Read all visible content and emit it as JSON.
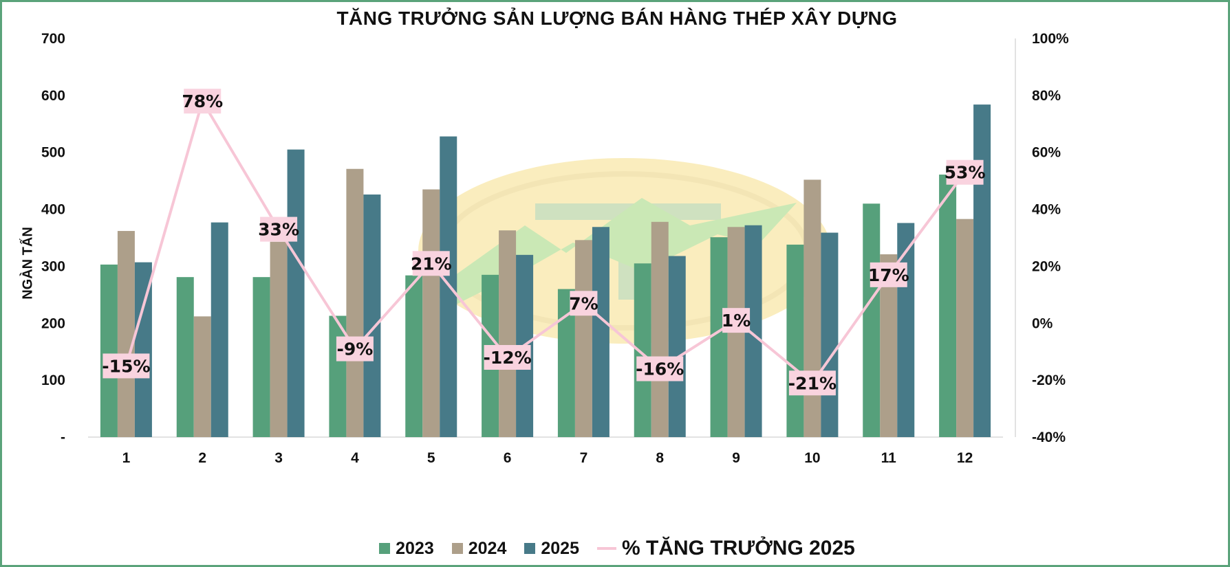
{
  "chart_data": {
    "type": "bar",
    "title": "TĂNG TRƯỞNG SẢN LƯỢNG BÁN HÀNG THÉP XÂY DỰNG",
    "ylabel": "NGÀN TẤN",
    "categories": [
      "1",
      "2",
      "3",
      "4",
      "5",
      "6",
      "7",
      "8",
      "9",
      "10",
      "11",
      "12"
    ],
    "ylim": [
      0,
      700
    ],
    "y_ticks": [
      "-",
      "100",
      "200",
      "300",
      "400",
      "500",
      "600",
      "700"
    ],
    "y2lim": [
      -40,
      100
    ],
    "y2_ticks": [
      "-40%",
      "-20%",
      "0%",
      "20%",
      "40%",
      "60%",
      "80%",
      "100%"
    ],
    "series": [
      {
        "name": "2023",
        "color": "#56a07b",
        "values": [
          303,
          281,
          281,
          213,
          284,
          285,
          260,
          305,
          351,
          338,
          410,
          461
        ]
      },
      {
        "name": "2024",
        "color": "#ad9f8a",
        "values": [
          362,
          212,
          343,
          471,
          435,
          363,
          346,
          378,
          369,
          452,
          321,
          383
        ]
      },
      {
        "name": "2025",
        "color": "#477a88",
        "values": [
          307,
          377,
          505,
          426,
          528,
          320,
          369,
          318,
          372,
          359,
          376,
          584
        ]
      }
    ],
    "growth_series": {
      "name": "% TĂNG TRƯỞNG 2025",
      "color": "#f7c6d6",
      "label_bg": "#f9d3df",
      "values": [
        -15,
        78,
        33,
        -9,
        21,
        -12,
        7,
        -16,
        1,
        -21,
        17,
        53
      ],
      "labels": [
        "-15%",
        "78%",
        "33%",
        "-9%",
        "21%",
        "-12%",
        "7%",
        "-16%",
        "1%",
        "-21%",
        "17%",
        "53%"
      ]
    },
    "grid": false,
    "legend_position": "bottom"
  }
}
